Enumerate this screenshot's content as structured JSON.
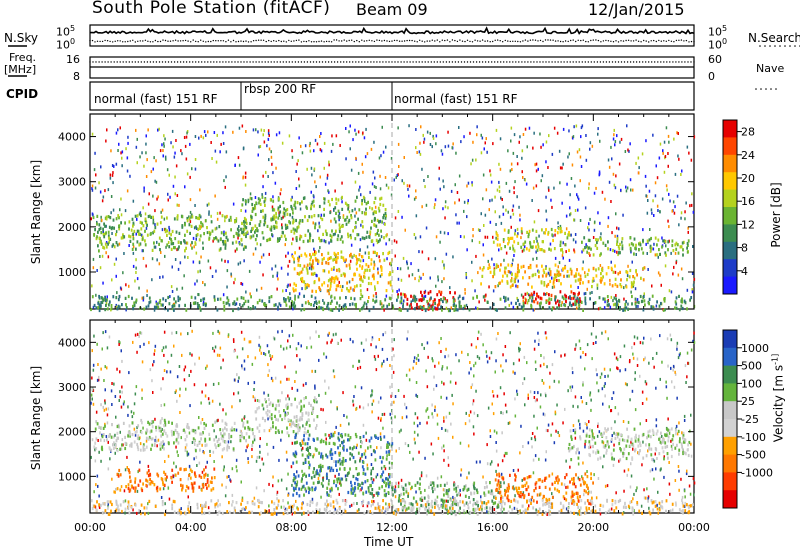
{
  "header": {
    "station": "South Pole Station (fitACF)",
    "beam": "Beam 09",
    "date": "12/Jan/2015"
  },
  "side_labels": {
    "nsky": "N.Sky",
    "freq_line1": "Freq.",
    "freq_line2": "[MHz]",
    "cpid": "CPID",
    "nsearch": "N.Search",
    "nave": "Nave"
  },
  "cpid_segments": [
    {
      "label": "normal (fast) 151 RF",
      "start_ut": 0,
      "end_ut": 6
    },
    {
      "label": "rbsp 200 RF",
      "start_ut": 6,
      "end_ut": 12
    },
    {
      "label": "normal (fast) 151 RF",
      "start_ut": 12,
      "end_ut": 24
    }
  ],
  "chart_data": [
    {
      "type": "line",
      "panel": "noise",
      "series": [
        {
          "name": "N.Sky"
        },
        {
          "name": "N.Search"
        }
      ],
      "ylabel": "N.Sky",
      "y2label": "N.Search",
      "ytick_labels": [
        "10^5",
        "10^0"
      ],
      "y2tick_labels": [
        "10^5",
        "10^0"
      ]
    },
    {
      "type": "line",
      "panel": "frequency",
      "series": [
        {
          "name": "Freq."
        },
        {
          "name": "Nave"
        }
      ],
      "ylabel": "[MHz]",
      "ylim": [
        8,
        16
      ],
      "yticks": [
        16,
        8
      ],
      "y2label": "Nave",
      "y2lim": [
        0,
        60
      ],
      "y2ticks": [
        60,
        0
      ]
    },
    {
      "type": "heatmap",
      "panel": "power",
      "ylabel": "Slant Range [km]",
      "xlim": [
        0,
        24
      ],
      "ylim": [
        180,
        4500
      ],
      "yticks": [
        1000,
        2000,
        3000,
        4000
      ],
      "colorbar_label": "Power [dB]",
      "colorbar_ticks": [
        4,
        8,
        12,
        16,
        20,
        24,
        28
      ],
      "colorbar_range": [
        0,
        30
      ],
      "colors": [
        "#1a1aff",
        "#1e3cc8",
        "#2a6e80",
        "#3c8c50",
        "#6ab432",
        "#b4d21e",
        "#ffc800",
        "#ff8c00",
        "#ff4600",
        "#e60000"
      ],
      "regions": [
        {
          "x0": 0.1,
          "x1": 6.2,
          "y0": 1500,
          "y1": 2300,
          "level": 4
        },
        {
          "x0": 6.0,
          "x1": 11.8,
          "y0": 1700,
          "y1": 2700,
          "level": 4
        },
        {
          "x0": 8.0,
          "x1": 12.0,
          "y0": 600,
          "y1": 1500,
          "level": 6
        },
        {
          "x0": 12.2,
          "x1": 14.5,
          "y0": 200,
          "y1": 600,
          "level": 9
        },
        {
          "x0": 17.0,
          "x1": 19.5,
          "y0": 300,
          "y1": 600,
          "level": 9
        },
        {
          "x0": 16.0,
          "x1": 19.0,
          "y0": 1500,
          "y1": 2000,
          "level": 5
        },
        {
          "x0": 19.5,
          "x1": 23.8,
          "y0": 1400,
          "y1": 1800,
          "level": 4
        },
        {
          "x0": 0.0,
          "x1": 24.0,
          "y0": 180,
          "y1": 500,
          "level": 3
        },
        {
          "x0": 15.5,
          "x1": 22.0,
          "y0": 700,
          "y1": 1200,
          "level": 6
        }
      ]
    },
    {
      "type": "heatmap",
      "panel": "velocity",
      "ylabel": "Slant Range [km]",
      "xlabel": "Time UT",
      "xlim": [
        0,
        24
      ],
      "ylim": [
        180,
        4500
      ],
      "xtick_labels": [
        "00:00",
        "04:00",
        "08:00",
        "12:00",
        "16:00",
        "20:00",
        "00:00"
      ],
      "yticks": [
        1000,
        2000,
        3000,
        4000
      ],
      "colorbar_label": "Velocity [m s^-1]",
      "colorbar_ticks": [
        1000,
        500,
        100,
        25,
        -25,
        -100,
        -500,
        -1000
      ],
      "colors": [
        "#1a3cb4",
        "#2864c8",
        "#3c8c50",
        "#64b43c",
        "#c8c8c8",
        "#d2d2d2",
        "#ffa000",
        "#ff7800",
        "#ff3c00",
        "#e60000"
      ],
      "regions": [
        {
          "x0": 0.1,
          "x1": 6.5,
          "y0": 1600,
          "y1": 2300,
          "level": 4
        },
        {
          "x0": 6.5,
          "x1": 9.0,
          "y0": 2000,
          "y1": 2800,
          "level": 4
        },
        {
          "x0": 1.0,
          "x1": 5.0,
          "y0": 700,
          "y1": 1200,
          "level": 7
        },
        {
          "x0": 8.0,
          "x1": 12.0,
          "y0": 600,
          "y1": 2000,
          "level": 2
        },
        {
          "x0": 12.0,
          "x1": 16.5,
          "y0": 200,
          "y1": 900,
          "level": 3
        },
        {
          "x0": 16.0,
          "x1": 20.0,
          "y0": 400,
          "y1": 1100,
          "level": 7
        },
        {
          "x0": 19.0,
          "x1": 23.8,
          "y0": 1400,
          "y1": 2100,
          "level": 4
        },
        {
          "x0": 0.0,
          "x1": 24.0,
          "y0": 180,
          "y1": 500,
          "level": 5
        }
      ]
    }
  ]
}
